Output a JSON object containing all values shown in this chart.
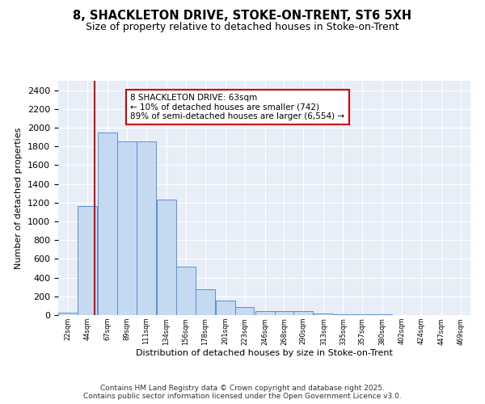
{
  "title_line1": "8, SHACKLETON DRIVE, STOKE-ON-TRENT, ST6 5XH",
  "title_line2": "Size of property relative to detached houses in Stoke-on-Trent",
  "xlabel": "Distribution of detached houses by size in Stoke-on-Trent",
  "ylabel": "Number of detached properties",
  "bar_color": "#c5d9f1",
  "bar_edge_color": "#5b8fd4",
  "background_color": "#e8eef8",
  "grid_color": "#ffffff",
  "annotation_box_color": "#cc0000",
  "property_line_color": "#cc0000",
  "property_value": 63,
  "bins": [
    22,
    44,
    67,
    89,
    111,
    134,
    156,
    178,
    201,
    223,
    246,
    268,
    290,
    313,
    335,
    357,
    380,
    402,
    424,
    447,
    469
  ],
  "heights": [
    25,
    1160,
    1950,
    1855,
    1855,
    1230,
    520,
    275,
    155,
    90,
    45,
    45,
    40,
    15,
    10,
    5,
    5,
    3,
    2,
    2,
    2
  ],
  "tick_labels": [
    "22sqm",
    "44sqm",
    "67sqm",
    "89sqm",
    "111sqm",
    "134sqm",
    "156sqm",
    "178sqm",
    "201sqm",
    "223sqm",
    "246sqm",
    "268sqm",
    "290sqm",
    "313sqm",
    "335sqm",
    "357sqm",
    "380sqm",
    "402sqm",
    "424sqm",
    "447sqm",
    "469sqm"
  ],
  "annotation_line1": "8 SHACKLETON DRIVE: 63sqm",
  "annotation_line2": "← 10% of detached houses are smaller (742)",
  "annotation_line3": "89% of semi-detached houses are larger (6,554) →",
  "ylim": [
    0,
    2500
  ],
  "yticks": [
    0,
    200,
    400,
    600,
    800,
    1000,
    1200,
    1400,
    1600,
    1800,
    2000,
    2200,
    2400
  ],
  "footer_line1": "Contains HM Land Registry data © Crown copyright and database right 2025.",
  "footer_line2": "Contains public sector information licensed under the Open Government Licence v3.0.",
  "title_fontsize": 10.5,
  "subtitle_fontsize": 9,
  "annotation_fontsize": 7.5,
  "footer_fontsize": 6.5,
  "ylabel_fontsize": 8,
  "xlabel_fontsize": 8
}
